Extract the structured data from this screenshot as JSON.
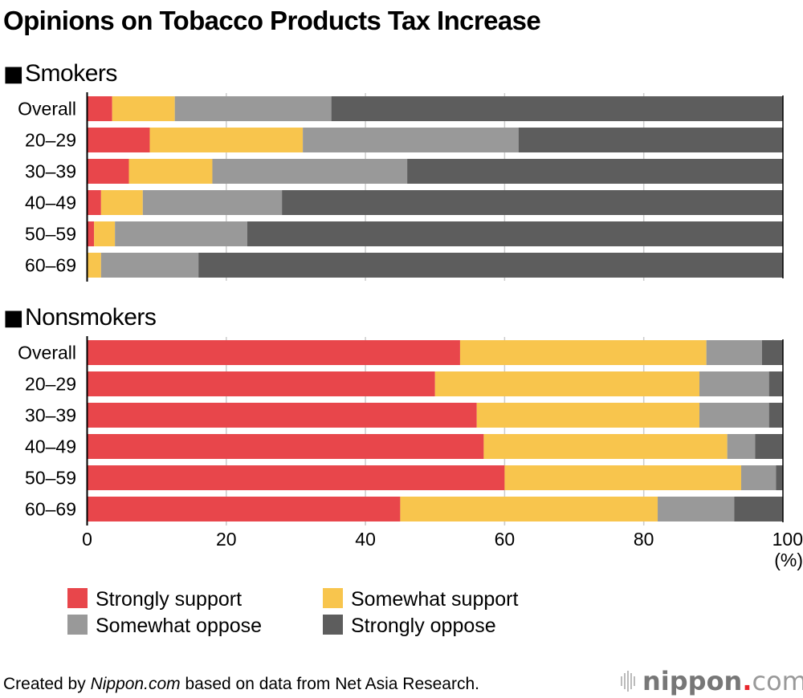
{
  "chart_data": {
    "type": "bar",
    "orientation": "horizontal",
    "stacked": true,
    "title": "Opinions on Tobacco Products Tax Increase",
    "xlabel": "",
    "unit_label": "(%)",
    "xlim": [
      0,
      100
    ],
    "xticks": [
      0,
      20,
      40,
      60,
      80,
      100
    ],
    "grid": true,
    "legend_position": "bottom",
    "legend": [
      {
        "name": "Strongly support",
        "color": "#e8464b"
      },
      {
        "name": "Somewhat support",
        "color": "#f8c54d"
      },
      {
        "name": "Somewhat oppose",
        "color": "#999999"
      },
      {
        "name": "Strongly oppose",
        "color": "#5d5d5d"
      }
    ],
    "panels": [
      {
        "title": "Smokers",
        "categories": [
          "Overall",
          "20–29",
          "30–39",
          "40–49",
          "50–59",
          "60–69"
        ],
        "series": [
          {
            "name": "Strongly support",
            "values": [
              3.6,
              9,
              6,
              2,
              1,
              0
            ]
          },
          {
            "name": "Somewhat support",
            "values": [
              9.0,
              22,
              12,
              6,
              3,
              2
            ]
          },
          {
            "name": "Somewhat oppose",
            "values": [
              22.5,
              31,
              28,
              20,
              19,
              14
            ]
          },
          {
            "name": "Strongly oppose",
            "values": [
              64.9,
              38,
              54,
              72,
              77,
              84
            ]
          }
        ]
      },
      {
        "title": "Nonsmokers",
        "categories": [
          "Overall",
          "20–29",
          "30–39",
          "40–49",
          "50–59",
          "60–69"
        ],
        "series": [
          {
            "name": "Strongly support",
            "values": [
              53.6,
              50,
              56,
              57,
              60,
              45
            ]
          },
          {
            "name": "Somewhat support",
            "values": [
              35.4,
              38,
              32,
              35,
              34,
              37
            ]
          },
          {
            "name": "Somewhat oppose",
            "values": [
              8.0,
              10,
              10,
              4,
              5,
              11
            ]
          },
          {
            "name": "Strongly oppose",
            "values": [
              3.0,
              2,
              2,
              4,
              1,
              7
            ]
          }
        ]
      }
    ]
  },
  "section_marker": "■",
  "footer": {
    "credit_prefix": "Created by ",
    "credit_source": "Nippon.com",
    "credit_suffix": " based on data from Net Asia Research.",
    "brand_name": "nippon",
    "brand_dot": ".",
    "brand_tld": "com",
    "brand_dot_color": "#e8262d"
  }
}
